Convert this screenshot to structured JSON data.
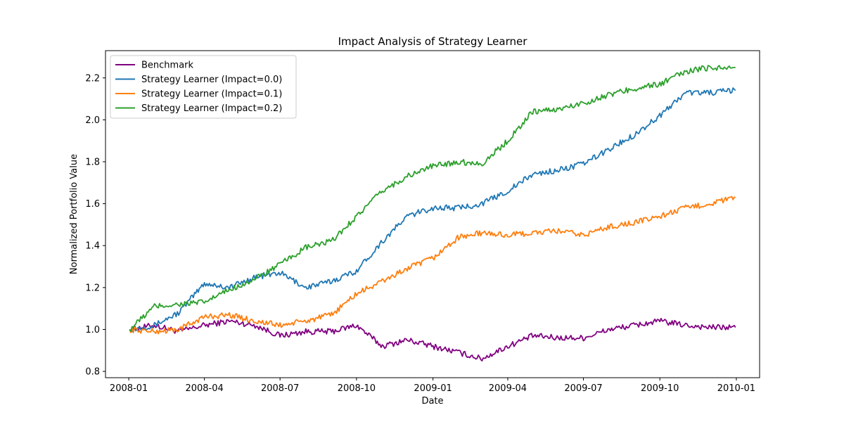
{
  "chart_data": {
    "type": "line",
    "title": "Impact Analysis of Strategy Learner",
    "xlabel": "Date",
    "ylabel": "Normalized Portfolio Value",
    "x_ticks": [
      "2008-01",
      "2008-04",
      "2008-07",
      "2008-10",
      "2009-01",
      "2009-04",
      "2009-07",
      "2009-10",
      "2010-01"
    ],
    "y_ticks": [
      "0.8",
      "1.0",
      "1.2",
      "1.4",
      "1.6",
      "1.8",
      "2.0",
      "2.2"
    ],
    "xlim": [
      "2007-12-04",
      "2010-01-29"
    ],
    "ylim": [
      0.77,
      2.33
    ],
    "grid": false,
    "legend_position": "top-left",
    "x": [
      "2008-01-02",
      "2008-02-01",
      "2008-03-01",
      "2008-04-01",
      "2008-05-01",
      "2008-06-01",
      "2008-07-01",
      "2008-08-01",
      "2008-09-01",
      "2008-10-01",
      "2008-11-01",
      "2008-12-01",
      "2009-01-01",
      "2009-02-01",
      "2009-03-01",
      "2009-04-01",
      "2009-05-01",
      "2009-06-01",
      "2009-07-01",
      "2009-08-01",
      "2009-09-01",
      "2009-10-01",
      "2009-11-01",
      "2009-12-01",
      "2009-12-31"
    ],
    "series": [
      {
        "name": "Benchmark",
        "color": "#800080",
        "values": [
          1.0,
          1.02,
          0.99,
          1.02,
          1.04,
          1.02,
          0.97,
          0.99,
          0.99,
          1.02,
          0.92,
          0.95,
          0.92,
          0.89,
          0.86,
          0.92,
          0.97,
          0.96,
          0.96,
          1.0,
          1.02,
          1.04,
          1.02,
          1.01,
          1.01
        ]
      },
      {
        "name": "Strategy Learner (Impact=0.0)",
        "color": "#1f77b4",
        "values": [
          1.0,
          1.02,
          1.08,
          1.22,
          1.2,
          1.25,
          1.27,
          1.2,
          1.23,
          1.28,
          1.42,
          1.54,
          1.58,
          1.58,
          1.6,
          1.66,
          1.74,
          1.76,
          1.79,
          1.86,
          1.93,
          2.02,
          2.13,
          2.13,
          2.14
        ]
      },
      {
        "name": "Strategy Learner (Impact=0.1)",
        "color": "#ff7f0e",
        "values": [
          1.0,
          0.99,
          1.0,
          1.06,
          1.07,
          1.04,
          1.02,
          1.04,
          1.07,
          1.17,
          1.23,
          1.29,
          1.34,
          1.44,
          1.46,
          1.45,
          1.46,
          1.47,
          1.45,
          1.49,
          1.51,
          1.54,
          1.58,
          1.6,
          1.63
        ]
      },
      {
        "name": "Strategy Learner (Impact=0.2)",
        "color": "#2ca02c",
        "values": [
          1.0,
          1.11,
          1.12,
          1.13,
          1.19,
          1.24,
          1.31,
          1.39,
          1.42,
          1.54,
          1.66,
          1.73,
          1.78,
          1.8,
          1.79,
          1.9,
          2.04,
          2.05,
          2.08,
          2.12,
          2.15,
          2.17,
          2.23,
          2.25,
          2.25
        ]
      }
    ]
  }
}
